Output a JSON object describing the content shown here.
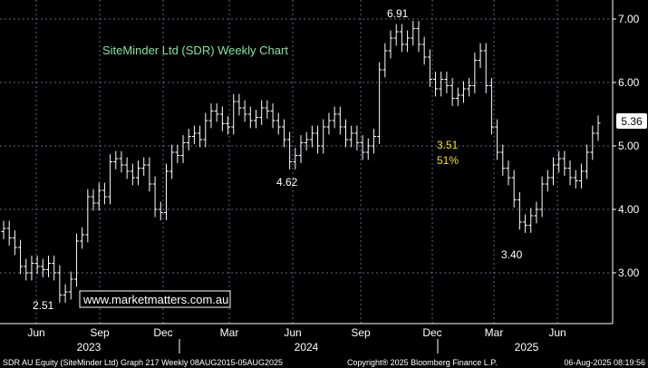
{
  "chart_data": {
    "type": "ohlc",
    "title": "SiteMinder Ltd (SDR) Weekly Chart",
    "watermark": "www.marketmatters.com.au",
    "ylim": [
      2.2,
      7.3
    ],
    "yticks": [
      "3.00",
      "4.00",
      "5.00",
      "6.00",
      "7.00"
    ],
    "months": [
      "Jun",
      "Sep",
      "Dec",
      "Mar",
      "Jun",
      "Sep",
      "Dec",
      "Mar",
      "Jun"
    ],
    "years": [
      "2023",
      "2024",
      "2025"
    ],
    "last_price": "5.36",
    "annotations": {
      "low_2023": "2.51",
      "low_2024": "4.62",
      "high_2024": "6.91",
      "low_2025": "3.40",
      "target": "3.51",
      "target_pct": "51%"
    },
    "footer": {
      "left": "SDR AU Equity (SiteMinder Ltd) Graph 217  Weekly 08AUG2015-05AUG2025",
      "center": "Copyright® 2025 Bloomberg Finance L.P.",
      "right": "06-Aug-2025 08:19:56"
    },
    "closes": [
      3.7,
      3.55,
      3.4,
      3.1,
      3.0,
      3.15,
      3.1,
      3.05,
      3.15,
      3.0,
      2.65,
      2.7,
      2.9,
      3.5,
      3.6,
      4.2,
      4.1,
      4.3,
      4.2,
      4.75,
      4.8,
      4.7,
      4.6,
      4.5,
      4.65,
      4.7,
      4.4,
      4.0,
      3.95,
      4.6,
      4.9,
      4.85,
      5.05,
      5.15,
      5.2,
      5.1,
      5.4,
      5.55,
      5.5,
      5.35,
      5.3,
      5.7,
      5.6,
      5.5,
      5.4,
      5.45,
      5.6,
      5.55,
      5.4,
      5.3,
      5.1,
      4.75,
      4.85,
      5.05,
      5.1,
      5.2,
      5.0,
      5.3,
      5.4,
      5.5,
      5.3,
      5.1,
      5.2,
      5.05,
      4.9,
      5.0,
      5.15,
      6.2,
      6.5,
      6.7,
      6.8,
      6.6,
      6.7,
      6.85,
      6.6,
      6.4,
      6.05,
      5.9,
      6.05,
      5.95,
      5.75,
      5.8,
      5.9,
      5.95,
      6.35,
      6.5,
      5.95,
      5.3,
      4.9,
      4.65,
      4.5,
      4.15,
      3.8,
      3.75,
      3.9,
      4.0,
      4.4,
      4.5,
      4.7,
      4.8,
      4.65,
      4.5,
      4.45,
      4.6,
      4.9,
      5.2,
      5.36
    ]
  }
}
